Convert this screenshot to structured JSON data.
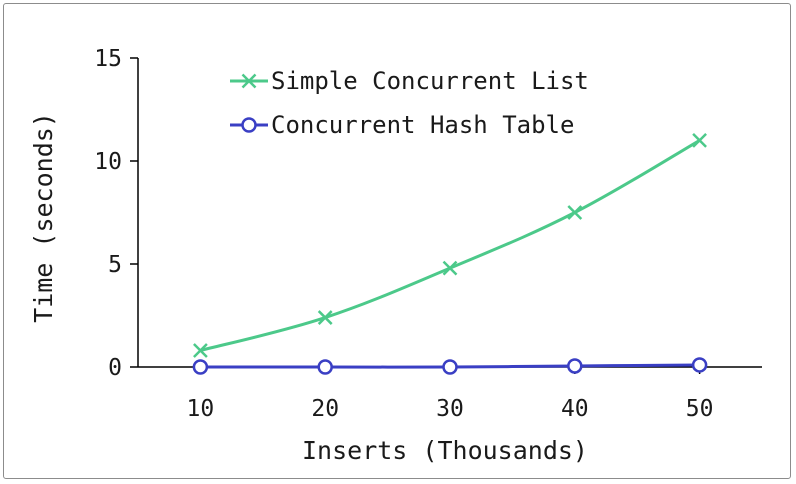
{
  "chart_data": {
    "type": "line",
    "xlabel": "Inserts (Thousands)",
    "ylabel": "Time (seconds)",
    "x": [
      10,
      20,
      30,
      40,
      50
    ],
    "x_ticks": [
      "10",
      "20",
      "30",
      "40",
      "50"
    ],
    "y_ticks": [
      "0",
      "5",
      "10",
      "15"
    ],
    "xlim": [
      5,
      55
    ],
    "ylim": [
      0,
      15
    ],
    "grid": false,
    "legend_position": "top",
    "series": [
      {
        "name": "Simple Concurrent List",
        "values": [
          0.8,
          2.4,
          4.8,
          7.5,
          11.0
        ],
        "color": "#4cc98a",
        "marker": "x"
      },
      {
        "name": "Concurrent Hash Table",
        "values": [
          0.0,
          0.0,
          0.0,
          0.05,
          0.1
        ],
        "color": "#3a3fc4",
        "marker": "circle"
      }
    ]
  }
}
